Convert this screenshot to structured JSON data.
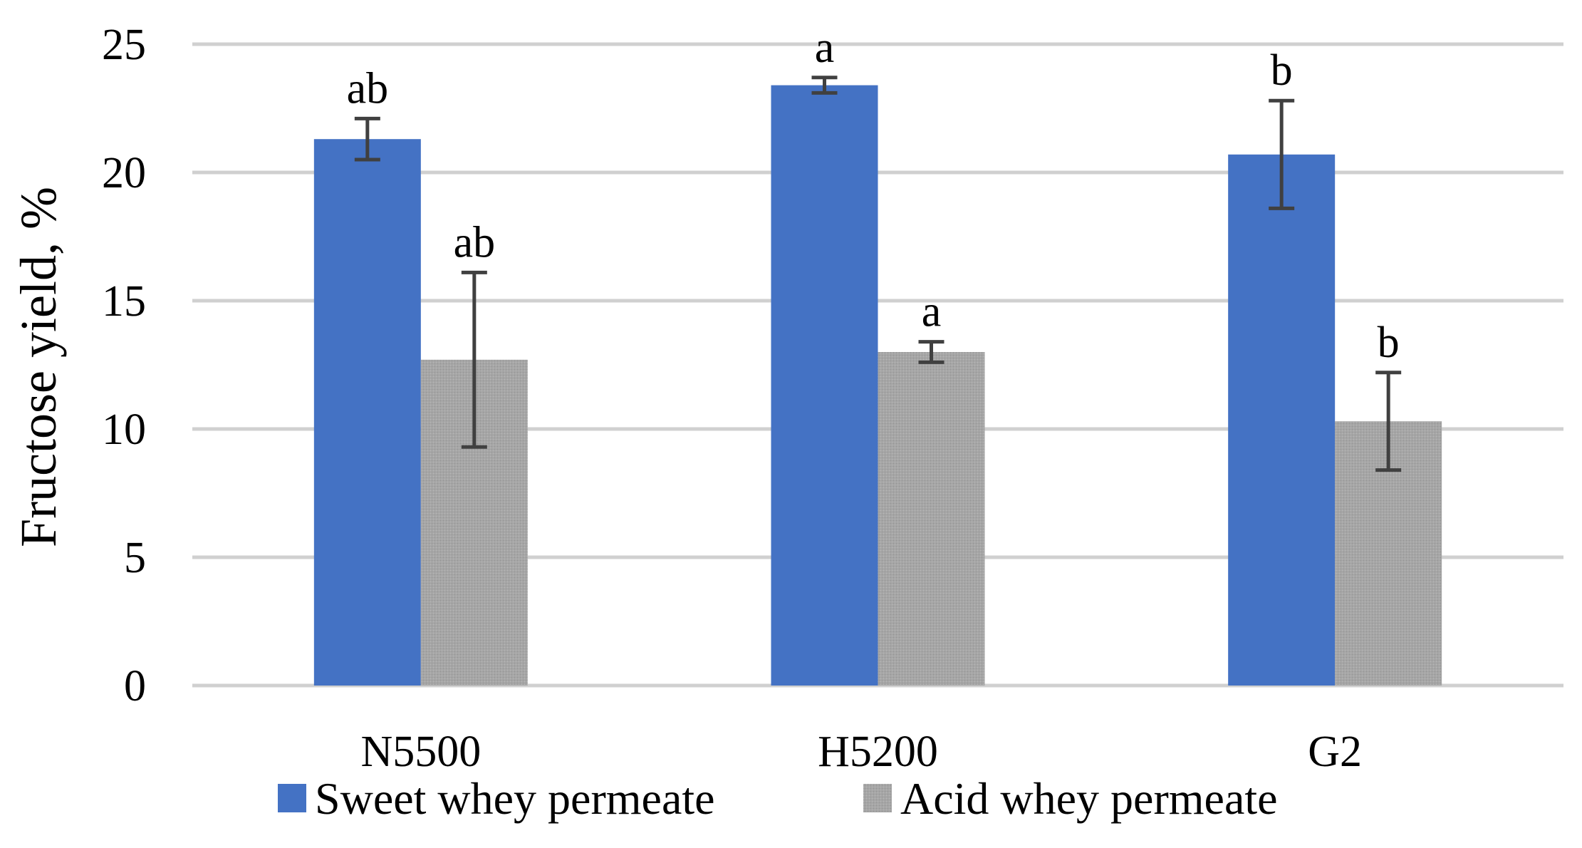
{
  "chart_data": {
    "type": "bar",
    "ylabel": "Fructose yield, %",
    "xlabel": "",
    "ylim": [
      0,
      25
    ],
    "yticks": [
      0,
      5,
      10,
      15,
      20,
      25
    ],
    "grid": true,
    "legend_position": "bottom",
    "categories": [
      "N5500",
      "H5200",
      "G2"
    ],
    "series": [
      {
        "name": "Sweet whey permeate",
        "color": "#4472C4",
        "values": [
          21.3,
          23.4,
          20.7
        ],
        "errors": [
          0.8,
          0.3,
          2.1
        ],
        "labels": [
          "ab",
          "a",
          "b"
        ]
      },
      {
        "name": "Acid whey permeate",
        "color": "#A6A6A6",
        "values": [
          12.7,
          13.0,
          10.3
        ],
        "errors": [
          3.4,
          0.4,
          1.9
        ],
        "labels": [
          "ab",
          "a",
          "b"
        ]
      }
    ]
  }
}
